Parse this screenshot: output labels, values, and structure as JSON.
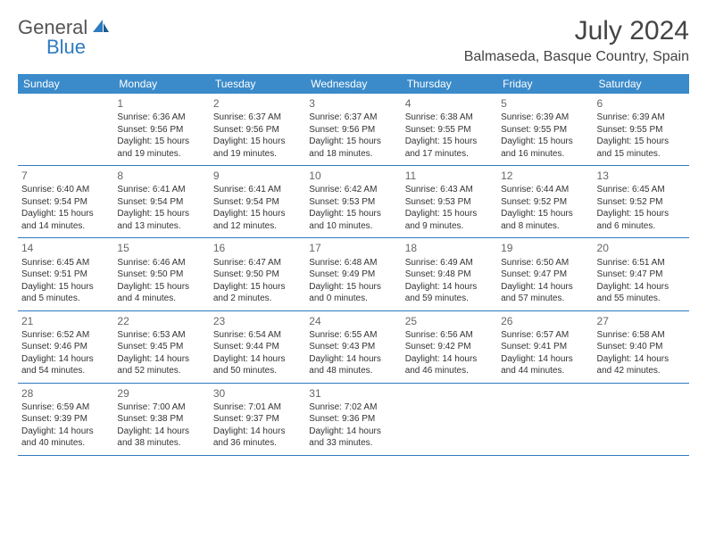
{
  "logo": {
    "text_general": "General",
    "text_blue": "Blue",
    "accent_color": "#2f7bbf"
  },
  "title": "July 2024",
  "location": "Balmaseda, Basque Country, Spain",
  "header_bg": "#3b8bca",
  "border_color": "#2f7bbf",
  "weekdays": [
    "Sunday",
    "Monday",
    "Tuesday",
    "Wednesday",
    "Thursday",
    "Friday",
    "Saturday"
  ],
  "weeks": [
    [
      {
        "n": "",
        "sunrise": "",
        "sunset": "",
        "daylight1": "",
        "daylight2": ""
      },
      {
        "n": "1",
        "sunrise": "Sunrise: 6:36 AM",
        "sunset": "Sunset: 9:56 PM",
        "daylight1": "Daylight: 15 hours",
        "daylight2": "and 19 minutes."
      },
      {
        "n": "2",
        "sunrise": "Sunrise: 6:37 AM",
        "sunset": "Sunset: 9:56 PM",
        "daylight1": "Daylight: 15 hours",
        "daylight2": "and 19 minutes."
      },
      {
        "n": "3",
        "sunrise": "Sunrise: 6:37 AM",
        "sunset": "Sunset: 9:56 PM",
        "daylight1": "Daylight: 15 hours",
        "daylight2": "and 18 minutes."
      },
      {
        "n": "4",
        "sunrise": "Sunrise: 6:38 AM",
        "sunset": "Sunset: 9:55 PM",
        "daylight1": "Daylight: 15 hours",
        "daylight2": "and 17 minutes."
      },
      {
        "n": "5",
        "sunrise": "Sunrise: 6:39 AM",
        "sunset": "Sunset: 9:55 PM",
        "daylight1": "Daylight: 15 hours",
        "daylight2": "and 16 minutes."
      },
      {
        "n": "6",
        "sunrise": "Sunrise: 6:39 AM",
        "sunset": "Sunset: 9:55 PM",
        "daylight1": "Daylight: 15 hours",
        "daylight2": "and 15 minutes."
      }
    ],
    [
      {
        "n": "7",
        "sunrise": "Sunrise: 6:40 AM",
        "sunset": "Sunset: 9:54 PM",
        "daylight1": "Daylight: 15 hours",
        "daylight2": "and 14 minutes."
      },
      {
        "n": "8",
        "sunrise": "Sunrise: 6:41 AM",
        "sunset": "Sunset: 9:54 PM",
        "daylight1": "Daylight: 15 hours",
        "daylight2": "and 13 minutes."
      },
      {
        "n": "9",
        "sunrise": "Sunrise: 6:41 AM",
        "sunset": "Sunset: 9:54 PM",
        "daylight1": "Daylight: 15 hours",
        "daylight2": "and 12 minutes."
      },
      {
        "n": "10",
        "sunrise": "Sunrise: 6:42 AM",
        "sunset": "Sunset: 9:53 PM",
        "daylight1": "Daylight: 15 hours",
        "daylight2": "and 10 minutes."
      },
      {
        "n": "11",
        "sunrise": "Sunrise: 6:43 AM",
        "sunset": "Sunset: 9:53 PM",
        "daylight1": "Daylight: 15 hours",
        "daylight2": "and 9 minutes."
      },
      {
        "n": "12",
        "sunrise": "Sunrise: 6:44 AM",
        "sunset": "Sunset: 9:52 PM",
        "daylight1": "Daylight: 15 hours",
        "daylight2": "and 8 minutes."
      },
      {
        "n": "13",
        "sunrise": "Sunrise: 6:45 AM",
        "sunset": "Sunset: 9:52 PM",
        "daylight1": "Daylight: 15 hours",
        "daylight2": "and 6 minutes."
      }
    ],
    [
      {
        "n": "14",
        "sunrise": "Sunrise: 6:45 AM",
        "sunset": "Sunset: 9:51 PM",
        "daylight1": "Daylight: 15 hours",
        "daylight2": "and 5 minutes."
      },
      {
        "n": "15",
        "sunrise": "Sunrise: 6:46 AM",
        "sunset": "Sunset: 9:50 PM",
        "daylight1": "Daylight: 15 hours",
        "daylight2": "and 4 minutes."
      },
      {
        "n": "16",
        "sunrise": "Sunrise: 6:47 AM",
        "sunset": "Sunset: 9:50 PM",
        "daylight1": "Daylight: 15 hours",
        "daylight2": "and 2 minutes."
      },
      {
        "n": "17",
        "sunrise": "Sunrise: 6:48 AM",
        "sunset": "Sunset: 9:49 PM",
        "daylight1": "Daylight: 15 hours",
        "daylight2": "and 0 minutes."
      },
      {
        "n": "18",
        "sunrise": "Sunrise: 6:49 AM",
        "sunset": "Sunset: 9:48 PM",
        "daylight1": "Daylight: 14 hours",
        "daylight2": "and 59 minutes."
      },
      {
        "n": "19",
        "sunrise": "Sunrise: 6:50 AM",
        "sunset": "Sunset: 9:47 PM",
        "daylight1": "Daylight: 14 hours",
        "daylight2": "and 57 minutes."
      },
      {
        "n": "20",
        "sunrise": "Sunrise: 6:51 AM",
        "sunset": "Sunset: 9:47 PM",
        "daylight1": "Daylight: 14 hours",
        "daylight2": "and 55 minutes."
      }
    ],
    [
      {
        "n": "21",
        "sunrise": "Sunrise: 6:52 AM",
        "sunset": "Sunset: 9:46 PM",
        "daylight1": "Daylight: 14 hours",
        "daylight2": "and 54 minutes."
      },
      {
        "n": "22",
        "sunrise": "Sunrise: 6:53 AM",
        "sunset": "Sunset: 9:45 PM",
        "daylight1": "Daylight: 14 hours",
        "daylight2": "and 52 minutes."
      },
      {
        "n": "23",
        "sunrise": "Sunrise: 6:54 AM",
        "sunset": "Sunset: 9:44 PM",
        "daylight1": "Daylight: 14 hours",
        "daylight2": "and 50 minutes."
      },
      {
        "n": "24",
        "sunrise": "Sunrise: 6:55 AM",
        "sunset": "Sunset: 9:43 PM",
        "daylight1": "Daylight: 14 hours",
        "daylight2": "and 48 minutes."
      },
      {
        "n": "25",
        "sunrise": "Sunrise: 6:56 AM",
        "sunset": "Sunset: 9:42 PM",
        "daylight1": "Daylight: 14 hours",
        "daylight2": "and 46 minutes."
      },
      {
        "n": "26",
        "sunrise": "Sunrise: 6:57 AM",
        "sunset": "Sunset: 9:41 PM",
        "daylight1": "Daylight: 14 hours",
        "daylight2": "and 44 minutes."
      },
      {
        "n": "27",
        "sunrise": "Sunrise: 6:58 AM",
        "sunset": "Sunset: 9:40 PM",
        "daylight1": "Daylight: 14 hours",
        "daylight2": "and 42 minutes."
      }
    ],
    [
      {
        "n": "28",
        "sunrise": "Sunrise: 6:59 AM",
        "sunset": "Sunset: 9:39 PM",
        "daylight1": "Daylight: 14 hours",
        "daylight2": "and 40 minutes."
      },
      {
        "n": "29",
        "sunrise": "Sunrise: 7:00 AM",
        "sunset": "Sunset: 9:38 PM",
        "daylight1": "Daylight: 14 hours",
        "daylight2": "and 38 minutes."
      },
      {
        "n": "30",
        "sunrise": "Sunrise: 7:01 AM",
        "sunset": "Sunset: 9:37 PM",
        "daylight1": "Daylight: 14 hours",
        "daylight2": "and 36 minutes."
      },
      {
        "n": "31",
        "sunrise": "Sunrise: 7:02 AM",
        "sunset": "Sunset: 9:36 PM",
        "daylight1": "Daylight: 14 hours",
        "daylight2": "and 33 minutes."
      },
      {
        "n": "",
        "sunrise": "",
        "sunset": "",
        "daylight1": "",
        "daylight2": ""
      },
      {
        "n": "",
        "sunrise": "",
        "sunset": "",
        "daylight1": "",
        "daylight2": ""
      },
      {
        "n": "",
        "sunrise": "",
        "sunset": "",
        "daylight1": "",
        "daylight2": ""
      }
    ]
  ]
}
